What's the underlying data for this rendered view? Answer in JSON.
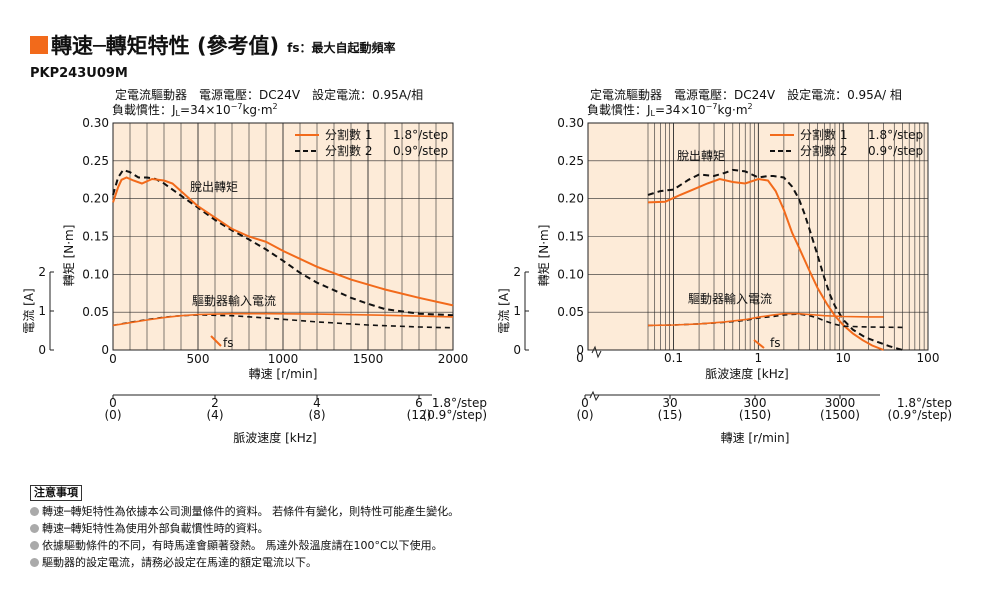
{
  "header": {
    "title": "轉速─轉矩特性 (參考值)",
    "note": "fs：最大自起動頻率",
    "model": "PKP243U09M"
  },
  "colors": {
    "accent": "#f26a1b",
    "plot_bg": "#fdebd8",
    "grid": "#2a2a2a"
  },
  "chart_data": [
    {
      "type": "line",
      "x_scale": "linear",
      "info_line1": "定電流驅動器　電源電壓：DC24V　設定電流：0.95A/相",
      "info_line2": "負載慣性：J",
      "info_sub": "L",
      "info_mid": "=34×10",
      "info_exp": "−7",
      "info_unit": "kg·m",
      "info_sq": "2",
      "ylabel": "轉矩 [N·m]",
      "ylim": [
        0,
        0.3
      ],
      "yticks": [
        "0",
        "0.05",
        "0.10",
        "0.15",
        "0.20",
        "0.25",
        "0.30"
      ],
      "xlabel": "轉速 [r/min]",
      "xlim": [
        0,
        2000
      ],
      "xticks": [
        "0",
        "500",
        "1000",
        "1500",
        "2000"
      ],
      "current_label": "電流 [A]",
      "current_ticks": [
        "0",
        "1",
        "2"
      ],
      "curve_label_pullout": "脫出轉矩",
      "curve_label_current": "驅動器輸入電流",
      "fs_label": "fs",
      "fs_x": 600,
      "legend": {
        "s1_name": "分割數 1",
        "s1_step": "1.8°/step",
        "s2_name": "分割數 2",
        "s2_step": "0.9°/step"
      },
      "sub_axis": {
        "label": "脈波速度 [kHz]",
        "ticks": [
          "0",
          "2",
          "4",
          "6"
        ],
        "ticks2": [
          "(0)",
          "(4)",
          "(8)",
          "(12)"
        ],
        "step1": "1.8°/step",
        "step2": "(0.9°/step)"
      },
      "series": [
        {
          "name": "分割數 1",
          "x": [
            0,
            30,
            50,
            80,
            120,
            170,
            230,
            300,
            350,
            400,
            450,
            500,
            600,
            700,
            800,
            900,
            1000,
            1200,
            1400,
            1600,
            1800,
            2000
          ],
          "y": [
            0.195,
            0.215,
            0.225,
            0.228,
            0.224,
            0.22,
            0.226,
            0.224,
            0.22,
            0.21,
            0.2,
            0.19,
            0.175,
            0.16,
            0.15,
            0.143,
            0.131,
            0.11,
            0.093,
            0.08,
            0.069,
            0.059
          ]
        },
        {
          "name": "分割數 2",
          "x": [
            0,
            30,
            60,
            100,
            150,
            200,
            250,
            300,
            350,
            400,
            450,
            500,
            600,
            700,
            800,
            900,
            1000,
            1100,
            1200,
            1300,
            1400,
            1500,
            1600,
            1800,
            2000
          ],
          "y": [
            0.205,
            0.228,
            0.238,
            0.235,
            0.228,
            0.228,
            0.226,
            0.22,
            0.212,
            0.204,
            0.196,
            0.188,
            0.172,
            0.158,
            0.146,
            0.133,
            0.118,
            0.102,
            0.089,
            0.079,
            0.069,
            0.061,
            0.054,
            0.048,
            0.046
          ]
        },
        {
          "name": "驅動器輸入電流 分割數 1",
          "x": [
            0,
            100,
            200,
            300,
            400,
            500,
            700,
            900,
            1200,
            1500,
            1800,
            2000
          ],
          "y": [
            0.63,
            0.7,
            0.77,
            0.83,
            0.88,
            0.91,
            0.93,
            0.93,
            0.92,
            0.9,
            0.87,
            0.85
          ]
        },
        {
          "name": "驅動器輸入電流 分割數 2",
          "x": [
            0,
            100,
            200,
            300,
            400,
            500,
            700,
            900,
            1200,
            1500,
            1800,
            2000
          ],
          "y": [
            0.63,
            0.71,
            0.78,
            0.84,
            0.88,
            0.9,
            0.88,
            0.82,
            0.72,
            0.64,
            0.59,
            0.57
          ]
        }
      ]
    },
    {
      "type": "line",
      "x_scale": "log",
      "info_line1": "定電流驅動器　電源電壓：DC24V　設定電流：0.95A/ 相",
      "info_line2": "負載慣性：J",
      "info_sub": "L",
      "info_mid": "=34×10",
      "info_exp": "−7",
      "info_unit": "kg·m",
      "info_sq": "2",
      "ylabel": "轉矩 [N·m]",
      "ylim": [
        0,
        0.3
      ],
      "yticks": [
        "0",
        "0.05",
        "0.10",
        "0.15",
        "0.20",
        "0.25",
        "0.30"
      ],
      "xlabel": "脈波速度 [kHz]",
      "xlim": [
        0.01,
        100
      ],
      "xticks": [
        "0",
        "0.1",
        "1",
        "10",
        "100"
      ],
      "current_label": "電流 [A]",
      "current_ticks": [
        "0",
        "1",
        "2"
      ],
      "curve_label_pullout": "脫出轉矩",
      "curve_label_current": "驅動器輸入電流",
      "fs_label": "fs",
      "fs_x": 1.3,
      "legend": {
        "s1_name": "分割數 1",
        "s1_step": "1.8°/step",
        "s2_name": "分割數 2",
        "s2_step": "0.9°/step"
      },
      "sub_axis": {
        "label": "轉速 [r/min]",
        "ticks": [
          "0",
          "30",
          "300",
          "3000"
        ],
        "ticks2": [
          "(0)",
          "(15)",
          "(150)",
          "(1500)"
        ],
        "step1": "1.8°/step",
        "step2": "(0.9°/step)"
      },
      "series": [
        {
          "name": "分割數 1",
          "x": [
            0.05,
            0.08,
            0.12,
            0.17,
            0.25,
            0.35,
            0.5,
            0.7,
            1.0,
            1.3,
            1.6,
            2.0,
            2.5,
            3.0,
            4.0,
            5.0,
            6.5,
            8.0,
            10,
            13,
            17,
            22,
            30
          ],
          "y": [
            0.195,
            0.196,
            0.205,
            0.212,
            0.22,
            0.226,
            0.222,
            0.22,
            0.226,
            0.224,
            0.21,
            0.185,
            0.155,
            0.136,
            0.105,
            0.082,
            0.06,
            0.045,
            0.033,
            0.022,
            0.013,
            0.006,
            0.0
          ]
        },
        {
          "name": "分割數 2",
          "x": [
            0.05,
            0.07,
            0.1,
            0.15,
            0.2,
            0.3,
            0.4,
            0.5,
            0.7,
            1.0,
            1.3,
            1.5,
            2.0,
            2.5,
            3.0,
            3.5,
            4.0,
            5.0,
            6.0,
            7.0,
            8.0,
            10,
            13,
            18,
            25,
            35,
            50
          ],
          "y": [
            0.205,
            0.21,
            0.212,
            0.225,
            0.232,
            0.23,
            0.234,
            0.238,
            0.236,
            0.228,
            0.23,
            0.23,
            0.228,
            0.216,
            0.2,
            0.18,
            0.16,
            0.125,
            0.095,
            0.073,
            0.058,
            0.04,
            0.027,
            0.017,
            0.011,
            0.005,
            0.0
          ]
        },
        {
          "name": "驅動器輸入電流 分割數 1",
          "x": [
            0.05,
            0.1,
            0.2,
            0.4,
            0.7,
            1.0,
            1.5,
            2.0,
            3.0,
            4.0,
            6.0,
            10,
            20,
            30
          ],
          "y": [
            0.63,
            0.64,
            0.67,
            0.72,
            0.78,
            0.84,
            0.9,
            0.93,
            0.93,
            0.91,
            0.88,
            0.86,
            0.85,
            0.85
          ]
        },
        {
          "name": "驅動器輸入電流 分割數 2",
          "x": [
            0.05,
            0.1,
            0.2,
            0.4,
            0.7,
            1.0,
            1.5,
            2.0,
            3.0,
            4.0,
            5.0,
            6.0,
            8.0,
            10,
            20,
            50
          ],
          "y": [
            0.63,
            0.64,
            0.67,
            0.71,
            0.76,
            0.82,
            0.86,
            0.9,
            0.92,
            0.88,
            0.82,
            0.75,
            0.66,
            0.61,
            0.59,
            0.58
          ]
        }
      ]
    }
  ],
  "notes": {
    "title": "注意事項",
    "items": [
      "轉速─轉矩特性為依據本公司測量條件的資料。 若條件有變化，則特性可能產生變化。",
      "轉速─轉矩特性為使用外部負載慣性時的資料。",
      "依據驅動條件的不同，有時馬達會顯著發熱。 馬達外殼溫度請在100°C以下使用。",
      "驅動器的設定電流，請務必設定在馬達的額定電流以下。"
    ]
  }
}
